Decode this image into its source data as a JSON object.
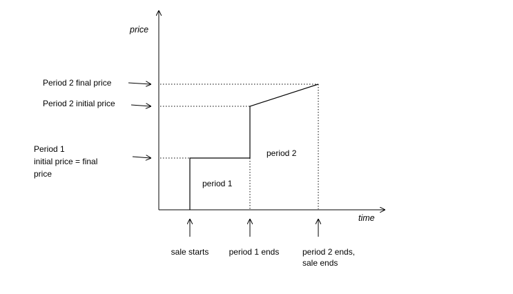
{
  "axes": {
    "y_label": "price",
    "x_label": "time"
  },
  "price_labels": {
    "period2_final": "Period 2 final price",
    "period2_initial": "Period 2 initial price",
    "period1_line1": "Period 1",
    "period1_line2": "initial price = final",
    "period1_line3": "price"
  },
  "region_labels": {
    "period1": "period 1",
    "period2": "period 2"
  },
  "time_labels": {
    "sale_starts": "sale starts",
    "period1_ends": "period 1 ends",
    "period2_ends_line1": "period 2 ends,",
    "period2_ends_line2": "sale ends"
  },
  "colors": {
    "line": "#000000",
    "background": "#ffffff"
  }
}
